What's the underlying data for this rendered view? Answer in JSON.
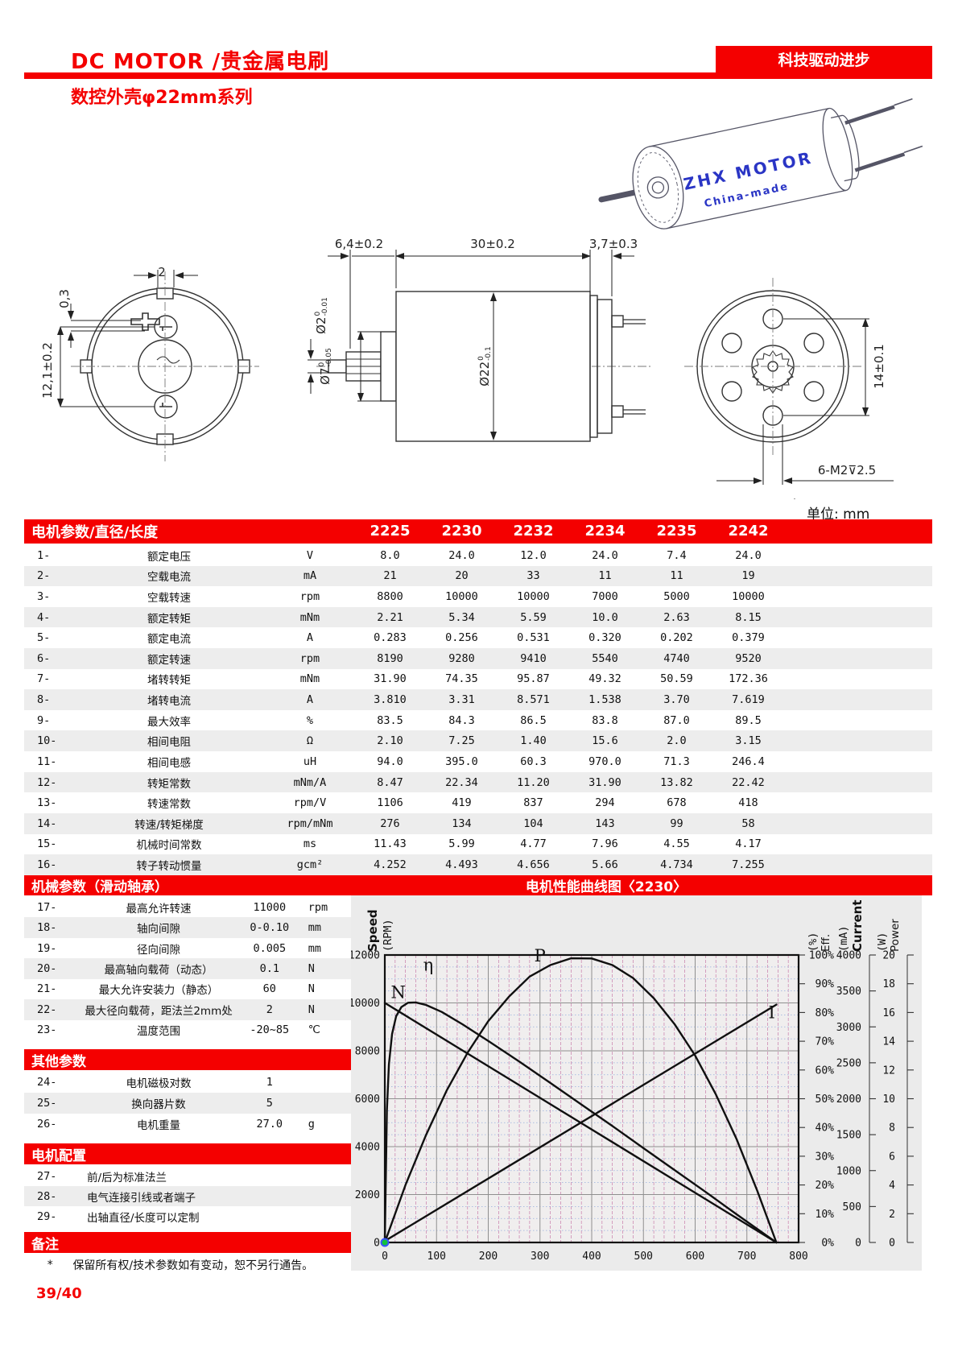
{
  "header": {
    "title": "DC MOTOR /贵金属电刷",
    "slogan": "科技驱动进步",
    "subtitle": "数控外壳φ22mm系列"
  },
  "motor_image": {
    "brand": "ZHX MOTOR",
    "origin": "China-made"
  },
  "drawings": {
    "units_label": "单位: mm",
    "front": {
      "dim_top": "2",
      "dim_offset": "0,3",
      "dim_pitch": "12,1±0.2"
    },
    "side": {
      "dim_shaft_len": "6,4±0.2",
      "dim_body_len": "30±0.2",
      "dim_rear_len": "3,7±0.3",
      "dia_shaft": {
        "main": "Ø2",
        "sup": "0",
        "sub": "-0.01"
      },
      "dia_boss": {
        "main": "Ø7",
        "sup": "0",
        "sub": "-0.05"
      },
      "dia_body": {
        "main": "Ø22",
        "sup": "0",
        "sub": "-0.1"
      }
    },
    "rear": {
      "dim_pitch": "14±0.1",
      "dim_thread": "6-M2⊽2.5"
    }
  },
  "main_table": {
    "header_label": "电机参数/直径/长度",
    "columns": [
      "2225",
      "2230",
      "2232",
      "2234",
      "2235",
      "2242"
    ],
    "rows": [
      {
        "no": "1-",
        "name": "额定电压",
        "unit": "V",
        "values": [
          "8.0",
          "24.0",
          "12.0",
          "24.0",
          "7.4",
          "24.0"
        ]
      },
      {
        "no": "2-",
        "name": "空载电流",
        "unit": "mA",
        "values": [
          "21",
          "20",
          "33",
          "11",
          "11",
          "19"
        ]
      },
      {
        "no": "3-",
        "name": "空载转速",
        "unit": "rpm",
        "values": [
          "8800",
          "10000",
          "10000",
          "7000",
          "5000",
          "10000"
        ]
      },
      {
        "no": "4-",
        "name": "额定转矩",
        "unit": "mNm",
        "values": [
          "2.21",
          "5.34",
          "5.59",
          "10.0",
          "2.63",
          "8.15"
        ]
      },
      {
        "no": "5-",
        "name": "额定电流",
        "unit": "A",
        "values": [
          "0.283",
          "0.256",
          "0.531",
          "0.320",
          "0.202",
          "0.379"
        ]
      },
      {
        "no": "6-",
        "name": "额定转速",
        "unit": "rpm",
        "values": [
          "8190",
          "9280",
          "9410",
          "5540",
          "4740",
          "9520"
        ]
      },
      {
        "no": "7-",
        "name": "堵转转矩",
        "unit": "mNm",
        "values": [
          "31.90",
          "74.35",
          "95.87",
          "49.32",
          "50.59",
          "172.36"
        ]
      },
      {
        "no": "8-",
        "name": "堵转电流",
        "unit": "A",
        "values": [
          "3.810",
          "3.31",
          "8.571",
          "1.538",
          "3.70",
          "7.619"
        ]
      },
      {
        "no": "9-",
        "name": "最大效率",
        "unit": "%",
        "values": [
          "83.5",
          "84.3",
          "86.5",
          "83.8",
          "87.0",
          "89.5"
        ]
      },
      {
        "no": "10-",
        "name": "相间电阻",
        "unit": "Ω",
        "values": [
          "2.10",
          "7.25",
          "1.40",
          "15.6",
          "2.0",
          "3.15"
        ]
      },
      {
        "no": "11-",
        "name": "相间电感",
        "unit": "uH",
        "values": [
          "94.0",
          "395.0",
          "60.3",
          "970.0",
          "71.3",
          "246.4"
        ]
      },
      {
        "no": "12-",
        "name": "转矩常数",
        "unit": "mNm/A",
        "values": [
          "8.47",
          "22.34",
          "11.20",
          "31.90",
          "13.82",
          "22.42"
        ]
      },
      {
        "no": "13-",
        "name": "转速常数",
        "unit": "rpm/V",
        "values": [
          "1106",
          "419",
          "837",
          "294",
          "678",
          "418"
        ]
      },
      {
        "no": "14-",
        "name": "转速/转矩梯度",
        "unit": "rpm/mNm",
        "values": [
          "276",
          "134",
          "104",
          "143",
          "99",
          "58"
        ]
      },
      {
        "no": "15-",
        "name": "机械时间常数",
        "unit": "ms",
        "values": [
          "11.43",
          "5.99",
          "4.77",
          "7.96",
          "4.55",
          "4.17"
        ]
      },
      {
        "no": "16-",
        "name": "转子转动惯量",
        "unit": "gcm²",
        "values": [
          "4.252",
          "4.493",
          "4.656",
          "5.66",
          "4.734",
          "7.255"
        ]
      }
    ]
  },
  "mech_section": {
    "title": "机械参数（滑动轴承）",
    "rows": [
      {
        "no": "17-",
        "name": "最高允许转速",
        "value": "11000",
        "unit": "rpm"
      },
      {
        "no": "18-",
        "name": "轴向间隙",
        "value": "0-0.10",
        "unit": "mm"
      },
      {
        "no": "19-",
        "name": "径向间隙",
        "value": "0.005",
        "unit": "mm"
      },
      {
        "no": "20-",
        "name": "最高轴向载荷（动态）",
        "value": "0.1",
        "unit": "N"
      },
      {
        "no": "21-",
        "name": "最大允许安装力（静态）",
        "value": "60",
        "unit": "N"
      },
      {
        "no": "22-",
        "name": "最大径向载荷，距法兰2mm处",
        "value": "2",
        "unit": "N"
      },
      {
        "no": "23-",
        "name": "温度范围",
        "value": "-20~85",
        "unit": "℃"
      }
    ]
  },
  "other_section": {
    "title": "其他参数",
    "rows": [
      {
        "no": "24-",
        "name": "电机磁极对数",
        "value": "1",
        "unit": ""
      },
      {
        "no": "25-",
        "name": "换向器片数",
        "value": "5",
        "unit": ""
      },
      {
        "no": "26-",
        "name": "电机重量",
        "value": "27.0",
        "unit": "g"
      }
    ]
  },
  "config_section": {
    "title": "电机配置",
    "rows": [
      {
        "no": "27-",
        "name": "前/后为标准法兰"
      },
      {
        "no": "28-",
        "name": "电气连接引线或者端子"
      },
      {
        "no": "29-",
        "name": "出轴直径/长度可以定制"
      }
    ]
  },
  "notes_section": {
    "title": "备注",
    "mark": "*",
    "note": "保留所有权/技术参数如有变动，恕不另行通告。"
  },
  "page_number": "39/40",
  "chart_data": {
    "type": "line",
    "title": "电机性能曲线图〈2230〉",
    "x_axis": {
      "min": 0,
      "max": 800,
      "step": 100
    },
    "y_axes": [
      {
        "id": "speed",
        "name": "Speed",
        "unit": "(RPM)",
        "min": 0,
        "max": 12000,
        "step": 2000,
        "suffix": "",
        "side": "left"
      },
      {
        "id": "eff",
        "name": "Eff.",
        "unit": "(%)",
        "min": 0,
        "max": 100,
        "step": 10,
        "suffix": "%",
        "side": "right"
      },
      {
        "id": "current",
        "name": "Current",
        "unit": "(mA)",
        "min": 0,
        "max": 4000,
        "step": 500,
        "suffix": "",
        "side": "right"
      },
      {
        "id": "power",
        "name": "Power",
        "unit": "(W)",
        "min": 0,
        "max": 20,
        "step": 2,
        "suffix": "",
        "side": "right"
      }
    ],
    "series": [
      {
        "name": "N",
        "axis": "speed",
        "label_at": [
          26,
          10200
        ],
        "points": [
          [
            0,
            10000
          ],
          [
            757,
            0
          ]
        ]
      },
      {
        "name": "I",
        "axis": "current",
        "label_at": [
          748,
          3120
        ],
        "points": [
          [
            0,
            20
          ],
          [
            757,
            3310
          ]
        ]
      },
      {
        "name": "P",
        "axis": "power",
        "label_at": [
          300,
          19.55
        ],
        "points": [
          [
            0,
            0
          ],
          [
            40,
            4.0
          ],
          [
            80,
            7.5
          ],
          [
            120,
            10.6
          ],
          [
            160,
            13.2
          ],
          [
            200,
            15.4
          ],
          [
            240,
            17.1
          ],
          [
            280,
            18.5
          ],
          [
            320,
            19.3
          ],
          [
            360,
            19.77
          ],
          [
            400,
            19.76
          ],
          [
            440,
            19.3
          ],
          [
            480,
            18.4
          ],
          [
            520,
            17.0
          ],
          [
            560,
            15.2
          ],
          [
            600,
            13.0
          ],
          [
            640,
            10.3
          ],
          [
            680,
            7.2
          ],
          [
            720,
            3.6
          ],
          [
            757,
            0
          ]
        ]
      },
      {
        "name": "η",
        "axis": "eff",
        "label_at": [
          84,
          94.5
        ],
        "points": [
          [
            0,
            0
          ],
          [
            4,
            46
          ],
          [
            8,
            62
          ],
          [
            14,
            72.5
          ],
          [
            22,
            78.7
          ],
          [
            32,
            81.9
          ],
          [
            45,
            83.4
          ],
          [
            60,
            83.5
          ],
          [
            80,
            82.6
          ],
          [
            110,
            80.2
          ],
          [
            150,
            75.9
          ],
          [
            200,
            70.1
          ],
          [
            260,
            62.9
          ],
          [
            320,
            55.5
          ],
          [
            380,
            48.0
          ],
          [
            440,
            40.5
          ],
          [
            500,
            32.8
          ],
          [
            560,
            25.2
          ],
          [
            620,
            17.6
          ],
          [
            680,
            9.8
          ],
          [
            757,
            0
          ]
        ]
      }
    ],
    "origin_marker": {
      "x": 0,
      "y": 0,
      "color": "#12c23c",
      "ring": "#3a52ff"
    },
    "grid": {
      "major": "#8f8f8f",
      "minor_h": "#96aede",
      "minor_v": "#c2699e",
      "minor_x_step": 20,
      "minor_y_step_speed": 500,
      "legend_position": "on-curve"
    }
  }
}
